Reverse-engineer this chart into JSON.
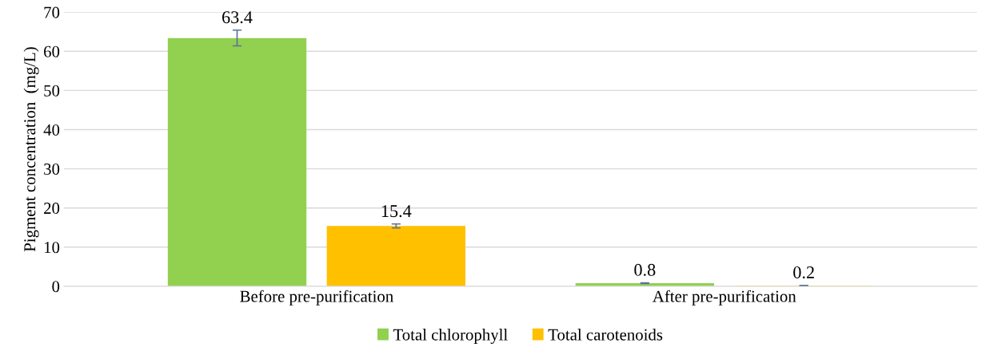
{
  "chart_data": {
    "type": "bar",
    "ylabel": "Pigment concentration  (mg/L)",
    "categories": [
      "Before pre-purification",
      "After pre-purification"
    ],
    "series": [
      {
        "name": "Total chlorophyll",
        "color": "#92d050",
        "values": [
          63.4,
          0.8
        ],
        "errors": [
          2.0,
          0.1
        ]
      },
      {
        "name": "Total carotenoids",
        "color": "#ffc000",
        "values": [
          15.4,
          0.2
        ],
        "errors": [
          0.5,
          0.05
        ]
      }
    ],
    "ylim": [
      0,
      70
    ],
    "yticks": [
      0,
      10,
      20,
      30,
      40,
      50,
      60,
      70
    ],
    "grid": "y",
    "legend": "bottom",
    "data_labels": true
  }
}
